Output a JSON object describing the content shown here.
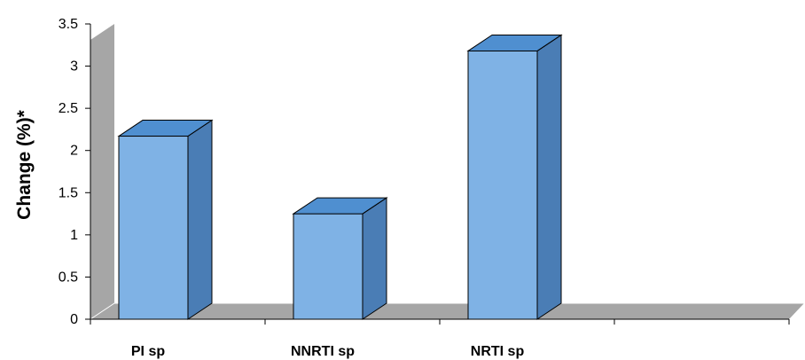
{
  "chart_data": {
    "type": "bar",
    "style": "3d-column",
    "categories": [
      "PI sp",
      "NNRTI sp",
      "NRTI sp",
      ""
    ],
    "values": [
      2.17,
      1.25,
      3.18,
      null
    ],
    "ylabel": "Change (%)*",
    "xlabel": "",
    "ylim": [
      0,
      3.5
    ],
    "yticks": [
      "0",
      "0.5",
      "1",
      "1.5",
      "2",
      "2.5",
      "3",
      "3.5"
    ],
    "grid": false,
    "legend": "none",
    "colors": {
      "bar_front": "#7FB2E5",
      "bar_top": "#4F8FD0",
      "bar_side": "#4A7DB5",
      "walls": "#A6A6A6",
      "outline": "#000000"
    }
  }
}
